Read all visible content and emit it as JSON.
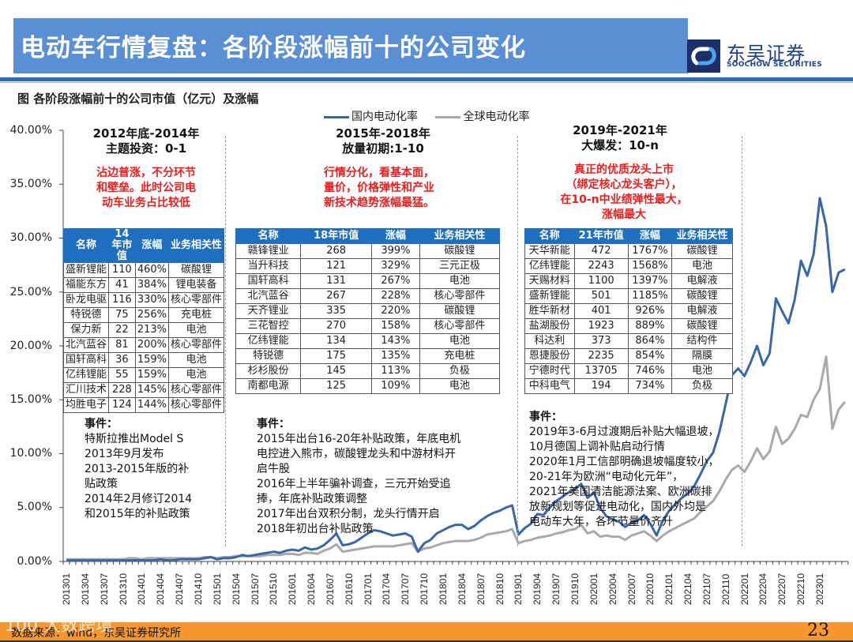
{
  "header": {
    "title": "电动车行情复盘：各阶段涨幅前十的公司变化",
    "logo_cn": "东吴证券",
    "logo_en": "SOOCHOW SECURITIES"
  },
  "figure": {
    "caption": "图 各阶段涨幅前十的公司市值（亿元）及涨幅"
  },
  "colors": {
    "title_bg": "#5b8fd4",
    "domestic_line": "#3a66a8",
    "global_line": "#a9a9a9",
    "table_header": "#1f6fc0",
    "note_red": "#ee1c1c",
    "footer_bg": "#f6962e"
  },
  "phases": [
    {
      "title_line1": "2012年底-2014年",
      "title_line2": "主题投资：0-1",
      "note_lines": [
        "沾边普涨，不分环节",
        "和壁垒。此时公司电",
        "动车业务占比较低"
      ],
      "table": {
        "headers": [
          "名称",
          "14年市值",
          "涨幅",
          "业务相关性"
        ],
        "rows": [
          [
            "盛新锂能",
            "110",
            "460%",
            "碳酸锂"
          ],
          [
            "福能东方",
            "41",
            "384%",
            "锂电装备"
          ],
          [
            "卧龙电驱",
            "116",
            "330%",
            "核心零部件"
          ],
          [
            "特锐德",
            "75",
            "256%",
            "充电桩"
          ],
          [
            "保力新",
            "22",
            "213%",
            "电池"
          ],
          [
            "北汽蓝谷",
            "81",
            "200%",
            "核心零部件"
          ],
          [
            "国轩高科",
            "36",
            "159%",
            "电池"
          ],
          [
            "亿纬锂能",
            "55",
            "159%",
            "电池"
          ],
          [
            "汇川技术",
            "228",
            "145%",
            "核心零部件"
          ],
          [
            "均胜电子",
            "124",
            "144%",
            "核心零部件"
          ]
        ]
      },
      "events_title": "事件：",
      "events_lines": [
        "特斯拉推出Model S",
        "2013年9月发布",
        "2013-2015年版的补",
        "贴政策",
        "2014年2月修订2014",
        "和2015年的补贴政策"
      ]
    },
    {
      "title_line1": "2015年-2018年",
      "title_line2": "放量初期:1-10",
      "note_lines": [
        "行情分化，看基本面，",
        "量价，价格弹性和产业",
        "新技术趋势涨幅最猛。"
      ],
      "table": {
        "headers": [
          "名称",
          "18年市值",
          "涨幅",
          "业务相关性"
        ],
        "rows": [
          [
            "赣锋锂业",
            "268",
            "399%",
            "碳酸锂"
          ],
          [
            "当升科技",
            "121",
            "329%",
            "三元正极"
          ],
          [
            "国轩高科",
            "131",
            "267%",
            "电池"
          ],
          [
            "北汽蓝谷",
            "267",
            "228%",
            "核心零部件"
          ],
          [
            "天齐锂业",
            "335",
            "220%",
            "碳酸锂"
          ],
          [
            "三花智控",
            "270",
            "158%",
            "核心零部件"
          ],
          [
            "亿纬锂能",
            "134",
            "143%",
            "电池"
          ],
          [
            "特锐德",
            "175",
            "135%",
            "充电桩"
          ],
          [
            "杉杉股份",
            "145",
            "113%",
            "负极"
          ],
          [
            "南都电源",
            "125",
            "109%",
            "电池"
          ]
        ]
      },
      "events_title": "事件：",
      "events_lines": [
        "2015年出台16-20年补贴政策，年底电机",
        "电控进入熊市，碳酸锂龙头和中游材料开",
        "启牛股",
        "2016年上半年骗补调查，三元开始受追",
        "捧，年底补贴政策调整",
        "2017年出台双积分制，龙头行情开启",
        "2018年初出台补贴政策"
      ]
    },
    {
      "title_line1": "2019年-2021年",
      "title_line2": "大爆发：10-n",
      "note_lines": [
        "真正的优质龙头上市",
        "（绑定核心龙头客户），",
        "在10-n中业绩弹性最大，",
        "涨幅最大"
      ],
      "table": {
        "headers": [
          "名称",
          "21年市值",
          "涨幅",
          "业务相关性"
        ],
        "rows": [
          [
            "天华新能",
            "472",
            "1767%",
            "碳酸锂"
          ],
          [
            "亿纬锂能",
            "2243",
            "1568%",
            "电池"
          ],
          [
            "天赐材料",
            "1100",
            "1397%",
            "电解液"
          ],
          [
            "盛新锂能",
            "501",
            "1185%",
            "碳酸锂"
          ],
          [
            "胜华新材",
            "401",
            "926%",
            "电解液"
          ],
          [
            "盐湖股份",
            "1923",
            "889%",
            "碳酸锂"
          ],
          [
            "科达利",
            "373",
            "864%",
            "结构件"
          ],
          [
            "恩捷股份",
            "2235",
            "854%",
            "隔膜"
          ],
          [
            "宁德时代",
            "13705",
            "746%",
            "电池"
          ],
          [
            "中科电气",
            "194",
            "734%",
            "负极"
          ]
        ]
      },
      "events_title": "事件：",
      "events_lines": [
        "2019年3-6月过渡期后补贴大幅退坡，",
        "10月德国上调补贴启动行情",
        "2020年1月工信部明确退坡幅度较小，",
        "20-21年为欧洲“电动化元年”，",
        "2021年美国清洁能源法案、欧洲碳排",
        "放新规划等促进电动化，国内外均是",
        "电动车大年，各环节量价齐升"
      ]
    }
  ],
  "footer": {
    "source": "数据来源：wind，东吴证券研究所",
    "page_number": "23",
    "watermark": "100 大数跨境"
  },
  "chart_data": {
    "type": "line",
    "title": "各阶段涨幅前十的公司市值（亿元）及涨幅",
    "xlabel": "",
    "ylabel": "",
    "ylim": [
      0,
      40
    ],
    "yticks": [
      "0.00%",
      "5.00%",
      "10.00%",
      "15.00%",
      "20.00%",
      "25.00%",
      "30.00%",
      "35.00%",
      "40.00%"
    ],
    "xticks": [
      "201301",
      "201304",
      "201307",
      "201310",
      "201401",
      "201404",
      "201407",
      "201410",
      "201501",
      "201504",
      "201507",
      "201510",
      "201601",
      "201604",
      "201607",
      "201610",
      "201701",
      "201704",
      "201707",
      "201710",
      "201801",
      "201804",
      "201807",
      "201810",
      "201901",
      "201904",
      "201907",
      "201910",
      "202001",
      "202004",
      "202007",
      "202010",
      "202101",
      "202104",
      "202107",
      "202110",
      "202201",
      "202204",
      "202207",
      "202210",
      "202301"
    ],
    "legend_position": "top",
    "grid": false,
    "x_start": "201301",
    "x_end": "202303",
    "series": [
      {
        "name": "国内电动化率",
        "color": "#3a66a8",
        "values": [
          0.1,
          0.1,
          0.1,
          0.1,
          0.1,
          0.1,
          0.1,
          0.1,
          0.1,
          0.1,
          0.1,
          0.1,
          0.1,
          0.1,
          0.1,
          0.2,
          0.1,
          0.1,
          0.2,
          0.2,
          0.2,
          0.2,
          0.3,
          0.4,
          0.2,
          0.3,
          0.3,
          0.4,
          0.6,
          0.5,
          0.6,
          0.7,
          0.8,
          0.9,
          0.8,
          1.0,
          1.1,
          1.0,
          1.3,
          1.1,
          1.2,
          1.5,
          2.0,
          2.6,
          1.5,
          1.6,
          1.8,
          2.2,
          2.6,
          2.9,
          2.8,
          2.6,
          2.4,
          2.5,
          2.6,
          2.3,
          0.9,
          1.7,
          2.0,
          2.6,
          2.9,
          3.2,
          3.4,
          3.4,
          3.0,
          3.3,
          3.8,
          4.2,
          4.5,
          4.7,
          5.0,
          5.2,
          2.5,
          3.1,
          3.5,
          4.4,
          4.3,
          5.0,
          5.6,
          6.0,
          6.4,
          6.7,
          7.2,
          5.9,
          6.4,
          5.0,
          4.2,
          3.9,
          3.7,
          3.2,
          3.6,
          3.8,
          4.3,
          3.5,
          2.4,
          3.8,
          4.7,
          5.3,
          5.9,
          6.3,
          7.0,
          8.1,
          9.3,
          10.1,
          12.0,
          14.6,
          17.3,
          17.9,
          17.2,
          18.5,
          20.0,
          18.2,
          19.3,
          24.4,
          23.2,
          22.1,
          24.3,
          27.9,
          26.5,
          28.5,
          33.7,
          31.1,
          25.0,
          26.8,
          27.1
        ]
      },
      {
        "name": "全球电动化率",
        "color": "#a9a9a9",
        "values": [
          0.2,
          0.2,
          0.2,
          0.2,
          0.2,
          0.2,
          0.2,
          0.2,
          0.2,
          0.2,
          0.3,
          0.3,
          0.2,
          0.3,
          0.3,
          0.3,
          0.3,
          0.3,
          0.3,
          0.3,
          0.3,
          0.3,
          0.4,
          0.4,
          0.3,
          0.4,
          0.4,
          0.5,
          0.5,
          0.5,
          0.5,
          0.5,
          0.6,
          0.6,
          0.6,
          0.7,
          0.7,
          0.6,
          0.8,
          0.8,
          0.7,
          1.0,
          1.2,
          1.6,
          0.9,
          1.0,
          1.1,
          1.2,
          1.3,
          1.4,
          1.4,
          1.4,
          1.4,
          1.5,
          1.6,
          1.7,
          0.9,
          1.2,
          1.3,
          1.5,
          1.7,
          1.8,
          1.9,
          1.9,
          1.9,
          2.0,
          2.2,
          2.5,
          2.6,
          2.7,
          2.8,
          3.0,
          1.7,
          1.9,
          2.0,
          2.2,
          2.3,
          2.4,
          2.6,
          2.7,
          2.9,
          3.0,
          3.4,
          2.6,
          2.8,
          2.3,
          2.4,
          2.3,
          2.3,
          2.0,
          2.4,
          2.6,
          2.8,
          2.4,
          1.9,
          2.4,
          2.8,
          3.1,
          3.4,
          3.7,
          4.0,
          4.6,
          5.1,
          5.6,
          6.5,
          7.6,
          8.5,
          8.9,
          8.3,
          9.3,
          10.5,
          9.5,
          10.2,
          12.5,
          10.9,
          11.4,
          12.3,
          13.6,
          13.4,
          15.0,
          16.0,
          19.0,
          12.3,
          14.1,
          14.8
        ]
      }
    ]
  }
}
